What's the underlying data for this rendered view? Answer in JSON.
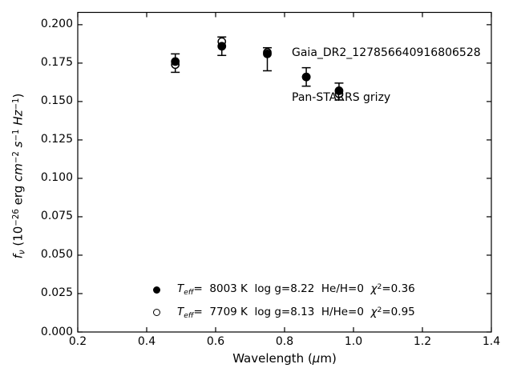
{
  "figure": {
    "background": "#ffffff",
    "foreground": "#000000"
  },
  "chart_data": {
    "type": "scatter",
    "title": "",
    "annotations": [
      "Gaia_DR2_127856640916806528",
      "Pan-STARRS grizy"
    ],
    "xlabel_segments": [
      {
        "t": "Wavelength ("
      },
      {
        "t": "μ",
        "i": true
      },
      {
        "t": "m)"
      }
    ],
    "ylabel_segments": [
      {
        "t": "f",
        "i": true
      },
      {
        "t": "ν",
        "sub": true
      },
      {
        "t": " (10"
      },
      {
        "t": "−26",
        "sup": true
      },
      {
        "t": " erg "
      },
      {
        "t": "cm",
        "i": true
      },
      {
        "t": "−2",
        "sup": true
      },
      {
        "t": " "
      },
      {
        "t": "s",
        "i": true
      },
      {
        "t": "−1",
        "sup": true
      },
      {
        "t": " "
      },
      {
        "t": "Hz",
        "i": true
      },
      {
        "t": "−1",
        "sup": true
      },
      {
        "t": ")"
      }
    ],
    "xlim": [
      0.2,
      1.4
    ],
    "ylim": [
      0.0,
      0.208
    ],
    "grid": false,
    "tick_direction": "in",
    "x_ticks": [
      {
        "v": 0.2,
        "label": "0.2"
      },
      {
        "v": 0.4,
        "label": "0.4"
      },
      {
        "v": 0.6,
        "label": "0.6"
      },
      {
        "v": 0.8,
        "label": "0.8"
      },
      {
        "v": 1.0,
        "label": "1.0"
      },
      {
        "v": 1.2,
        "label": "1.2"
      },
      {
        "v": 1.4,
        "label": "1.4"
      }
    ],
    "y_ticks": [
      {
        "v": 0.0,
        "label": "0.000"
      },
      {
        "v": 0.025,
        "label": "0.025"
      },
      {
        "v": 0.05,
        "label": "0.050"
      },
      {
        "v": 0.075,
        "label": "0.075"
      },
      {
        "v": 0.1,
        "label": "0.100"
      },
      {
        "v": 0.125,
        "label": "0.125"
      },
      {
        "v": 0.15,
        "label": "0.150"
      },
      {
        "v": 0.175,
        "label": "0.175"
      },
      {
        "v": 0.2,
        "label": "0.200"
      }
    ],
    "bands": [
      "g",
      "r",
      "i",
      "z",
      "y"
    ],
    "x": [
      0.483,
      0.618,
      0.75,
      0.863,
      0.958
    ],
    "error_bars": {
      "lo": [
        0.169,
        0.18,
        0.17,
        0.16,
        0.151
      ],
      "hi": [
        0.181,
        0.192,
        0.185,
        0.172,
        0.162
      ]
    },
    "series": [
      {
        "name": "Teff= 8003 K  log g=8.22  He/H=0  chi2=0.36",
        "marker": "filled-circle",
        "values": [
          0.176,
          0.186,
          0.181,
          0.166,
          0.157
        ]
      },
      {
        "name": "Teff= 7709 K  log g=8.13  H/He=0  chi2=0.95",
        "marker": "open-circle",
        "values": [
          0.174,
          0.189,
          0.182,
          0.166,
          0.155
        ]
      }
    ],
    "legend": {
      "position": "lower-center-left",
      "entries": [
        {
          "marker": "filled-circle",
          "segments": [
            {
              "t": "T",
              "i": true
            },
            {
              "t": "eff",
              "sub": true
            },
            {
              "t": "=  8003 K  log g=8.22  He/H=0  "
            },
            {
              "t": "χ",
              "i": true
            },
            {
              "t": "2",
              "sup": true
            },
            {
              "t": "=0.36"
            }
          ]
        },
        {
          "marker": "open-circle",
          "segments": [
            {
              "t": "T",
              "i": true
            },
            {
              "t": "eff",
              "sub": true
            },
            {
              "t": "=  7709 K  log g=8.13  H/He=0  "
            },
            {
              "t": "χ",
              "i": true
            },
            {
              "t": "2",
              "sup": true
            },
            {
              "t": "=0.95"
            }
          ]
        }
      ]
    },
    "colors": {
      "foreground": "#000000",
      "background": "#ffffff"
    }
  }
}
